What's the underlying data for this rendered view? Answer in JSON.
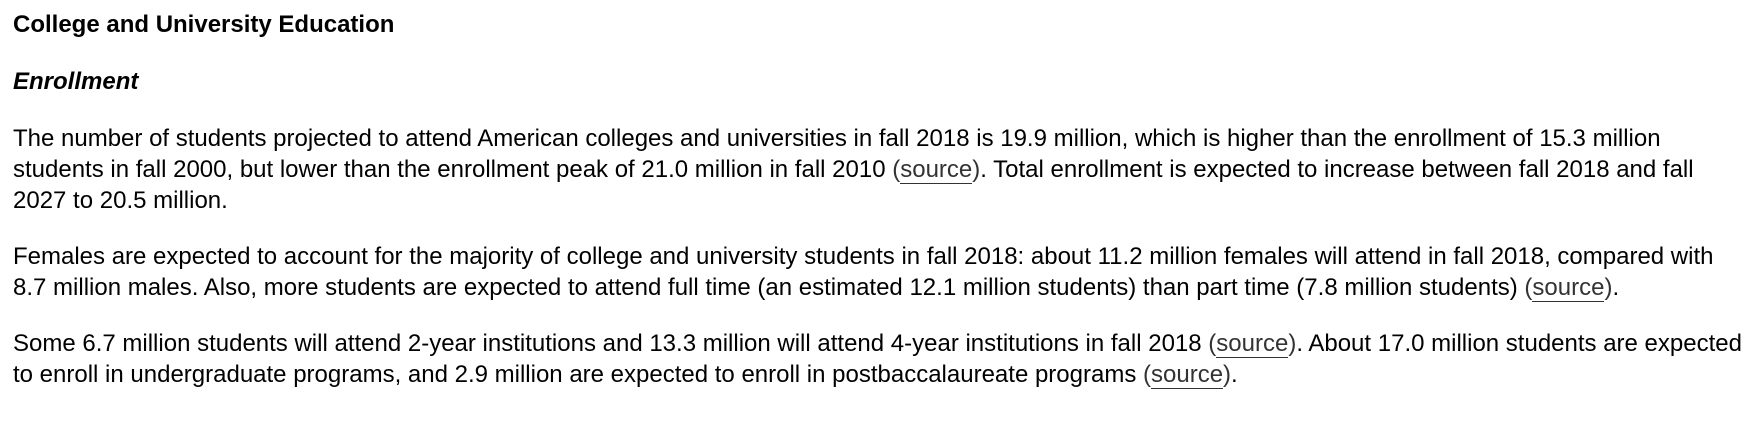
{
  "section": {
    "title": "College and University Education",
    "subtitle": "Enrollment"
  },
  "paragraphs": [
    {
      "before": "The number of students projected to attend American colleges and universities in fall 2018 is 19.9 million, which is higher than the enrollment of 15.3 million students in fall 2000, but lower than the enrollment peak of 21.0 million in fall 2010 ",
      "link": "source",
      "after": ". Total enrollment is expected to increase between fall 2018 and fall 2027 to 20.5 million."
    },
    {
      "before": "Females are expected to account for the majority of college and university students in fall 2018: about 11.2 million females will attend in fall 2018, compared with 8.7 million males. Also, more students are expected to attend full time (an estimated 12.1 million students) than part time (7.8 million students) ",
      "link": "source",
      "after": "."
    },
    {
      "before": "Some 6.7 million students will attend 2-year institutions and 13.3 million will attend 4-year institutions in fall 2018 ",
      "link": "source",
      "middle": ". About 17.0 million students are expected to enroll in undergraduate programs, and 2.9 million are expected to enroll in postbaccalaureate programs ",
      "link2": "source",
      "after": "."
    }
  ],
  "paren_open": "(",
  "paren_close": ")"
}
